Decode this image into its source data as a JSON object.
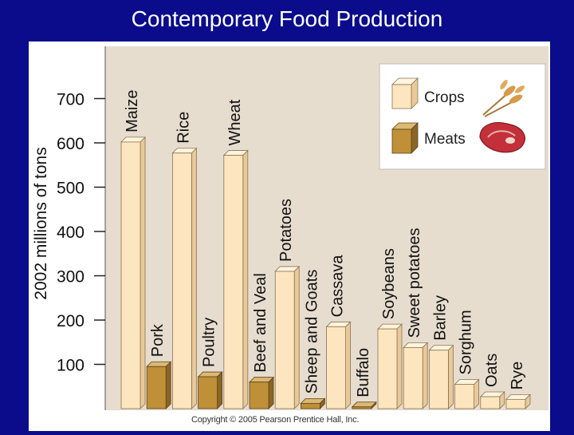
{
  "title": "Contemporary Food Production",
  "copyright": "Copyright © 2005 Pearson Prentice Hall, Inc.",
  "colors": {
    "background": "#0a0c8c",
    "plot_background": "#e6ddcf",
    "crop_front": "#fde5bf",
    "crop_top": "#fff4de",
    "crop_side": "#e9c99a",
    "meat_front": "#bf9037",
    "meat_top": "#dcb874",
    "meat_side": "#8a6526"
  },
  "chart_data": {
    "type": "bar",
    "title": "Contemporary Food Production",
    "ylabel": "2002 millions of tons",
    "xlabel": "",
    "ylim": [
      0,
      800
    ],
    "yticks": [
      100,
      200,
      300,
      400,
      500,
      600,
      700
    ],
    "legend_position": "top-right",
    "series": [
      {
        "name": "Crops",
        "kind": "crop"
      },
      {
        "name": "Meats",
        "kind": "meat"
      }
    ],
    "bars": [
      {
        "label": "Maize",
        "value": 602,
        "kind": "crop"
      },
      {
        "label": "Pork",
        "value": 95,
        "kind": "meat"
      },
      {
        "label": "Rice",
        "value": 577,
        "kind": "crop"
      },
      {
        "label": "Poultry",
        "value": 72,
        "kind": "meat"
      },
      {
        "label": "Wheat",
        "value": 572,
        "kind": "crop"
      },
      {
        "label": "Beef and Veal",
        "value": 60,
        "kind": "meat"
      },
      {
        "label": "Potatoes",
        "value": 310,
        "kind": "crop"
      },
      {
        "label": "Sheep and Goats",
        "value": 12,
        "kind": "meat"
      },
      {
        "label": "Cassava",
        "value": 185,
        "kind": "crop"
      },
      {
        "label": "Buffalo",
        "value": 4,
        "kind": "meat"
      },
      {
        "label": "Soybeans",
        "value": 180,
        "kind": "crop"
      },
      {
        "label": "Sweet potatoes",
        "value": 138,
        "kind": "crop"
      },
      {
        "label": "Barley",
        "value": 132,
        "kind": "crop"
      },
      {
        "label": "Sorghum",
        "value": 55,
        "kind": "crop"
      },
      {
        "label": "Oats",
        "value": 27,
        "kind": "crop"
      },
      {
        "label": "Rye",
        "value": 21,
        "kind": "crop"
      }
    ]
  }
}
